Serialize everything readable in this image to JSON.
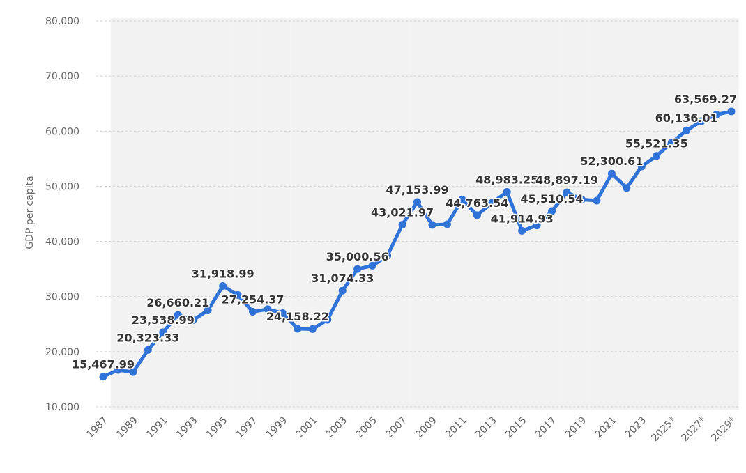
{
  "chart_data": {
    "type": "line",
    "ylabel": "GDP per capita",
    "ylim": [
      10000,
      80000
    ],
    "yticks": [
      {
        "value": 10000,
        "label": "10,000"
      },
      {
        "value": 20000,
        "label": "20,000"
      },
      {
        "value": 30000,
        "label": "30,000"
      },
      {
        "value": 40000,
        "label": "40,000"
      },
      {
        "value": 50000,
        "label": "50,000"
      },
      {
        "value": 60000,
        "label": "60,000"
      },
      {
        "value": 70000,
        "label": "70,000"
      },
      {
        "value": 80000,
        "label": "80,000"
      }
    ],
    "x": [
      "1987",
      "1988",
      "1989",
      "1990",
      "1991",
      "1992",
      "1993",
      "1994",
      "1995",
      "1996",
      "1997",
      "1998",
      "1999",
      "2000",
      "2001",
      "2002",
      "2003",
      "2004",
      "2005",
      "2006",
      "2007",
      "2008",
      "2009",
      "2010",
      "2011",
      "2012",
      "2013",
      "2014",
      "2015",
      "2016",
      "2017",
      "2018",
      "2019",
      "2020",
      "2021",
      "2022",
      "2023",
      "2024",
      "2025*",
      "2026*",
      "2027*",
      "2028*",
      "2029*"
    ],
    "xtick_labels": [
      "1987",
      "1989",
      "1991",
      "1993",
      "1995",
      "1997",
      "1999",
      "2001",
      "2003",
      "2005",
      "2007",
      "2009",
      "2011",
      "2013",
      "2015",
      "2017",
      "2019",
      "2021",
      "2023",
      "2025*",
      "2027*",
      "2029*"
    ],
    "series": [
      {
        "values": [
          15467.99,
          16700,
          16300,
          20323.33,
          23538.99,
          26660.21,
          25700,
          27500,
          31918.99,
          30300,
          27254.37,
          27700,
          27000,
          24158.22,
          24100,
          25800,
          31074.33,
          35000.56,
          35600,
          37400,
          43021.97,
          47153.99,
          43000,
          43100,
          47600,
          44763.54,
          47000,
          48983.25,
          41914.93,
          42900,
          45510.54,
          48897.19,
          47600,
          47400,
          52300.61,
          49700,
          53600,
          55521.35,
          57900,
          60136.01,
          61800,
          63000,
          63569.27
        ]
      }
    ],
    "data_labels": [
      {
        "year": "1987",
        "value": 15467.99,
        "label": "15,467.99"
      },
      {
        "year": "1990",
        "value": 20323.33,
        "label": "20,323.33"
      },
      {
        "year": "1991",
        "value": 23538.99,
        "label": "23,538.99"
      },
      {
        "year": "1992",
        "value": 26660.21,
        "label": "26,660.21"
      },
      {
        "year": "1995",
        "value": 31918.99,
        "label": "31,918.99"
      },
      {
        "year": "1997",
        "value": 27254.37,
        "label": "27,254.37"
      },
      {
        "year": "2000",
        "value": 24158.22,
        "label": "24,158.22"
      },
      {
        "year": "2003",
        "value": 31074.33,
        "label": "31,074.33"
      },
      {
        "year": "2004",
        "value": 35000.56,
        "label": "35,000.56"
      },
      {
        "year": "2007",
        "value": 43021.97,
        "label": "43,021.97"
      },
      {
        "year": "2008",
        "value": 47153.99,
        "label": "47,153.99"
      },
      {
        "year": "2012",
        "value": 44763.54,
        "label": "44,763.54"
      },
      {
        "year": "2014",
        "value": 48983.25,
        "label": "48,983.25"
      },
      {
        "year": "2015",
        "value": 41914.93,
        "label": "41,914.93"
      },
      {
        "year": "2017",
        "value": 45510.54,
        "label": "45,510.54"
      },
      {
        "year": "2018",
        "value": 48897.19,
        "label": "48,897.19"
      },
      {
        "year": "2021",
        "value": 52300.61,
        "label": "52,300.61"
      },
      {
        "year": "2024",
        "value": 55521.35,
        "label": "55,521.35"
      },
      {
        "year": "2026*",
        "value": 60136.01,
        "label": "60,136.01"
      },
      {
        "year": "2029*",
        "value": 63569.27,
        "label": "63,569.27"
      }
    ],
    "colors": {
      "line": "#2f73d8",
      "band": "#f2f2f2",
      "gridline": "#cfcfcf",
      "tick_text": "#666666",
      "label_text": "#333333"
    },
    "grid": true,
    "legend": "none"
  }
}
